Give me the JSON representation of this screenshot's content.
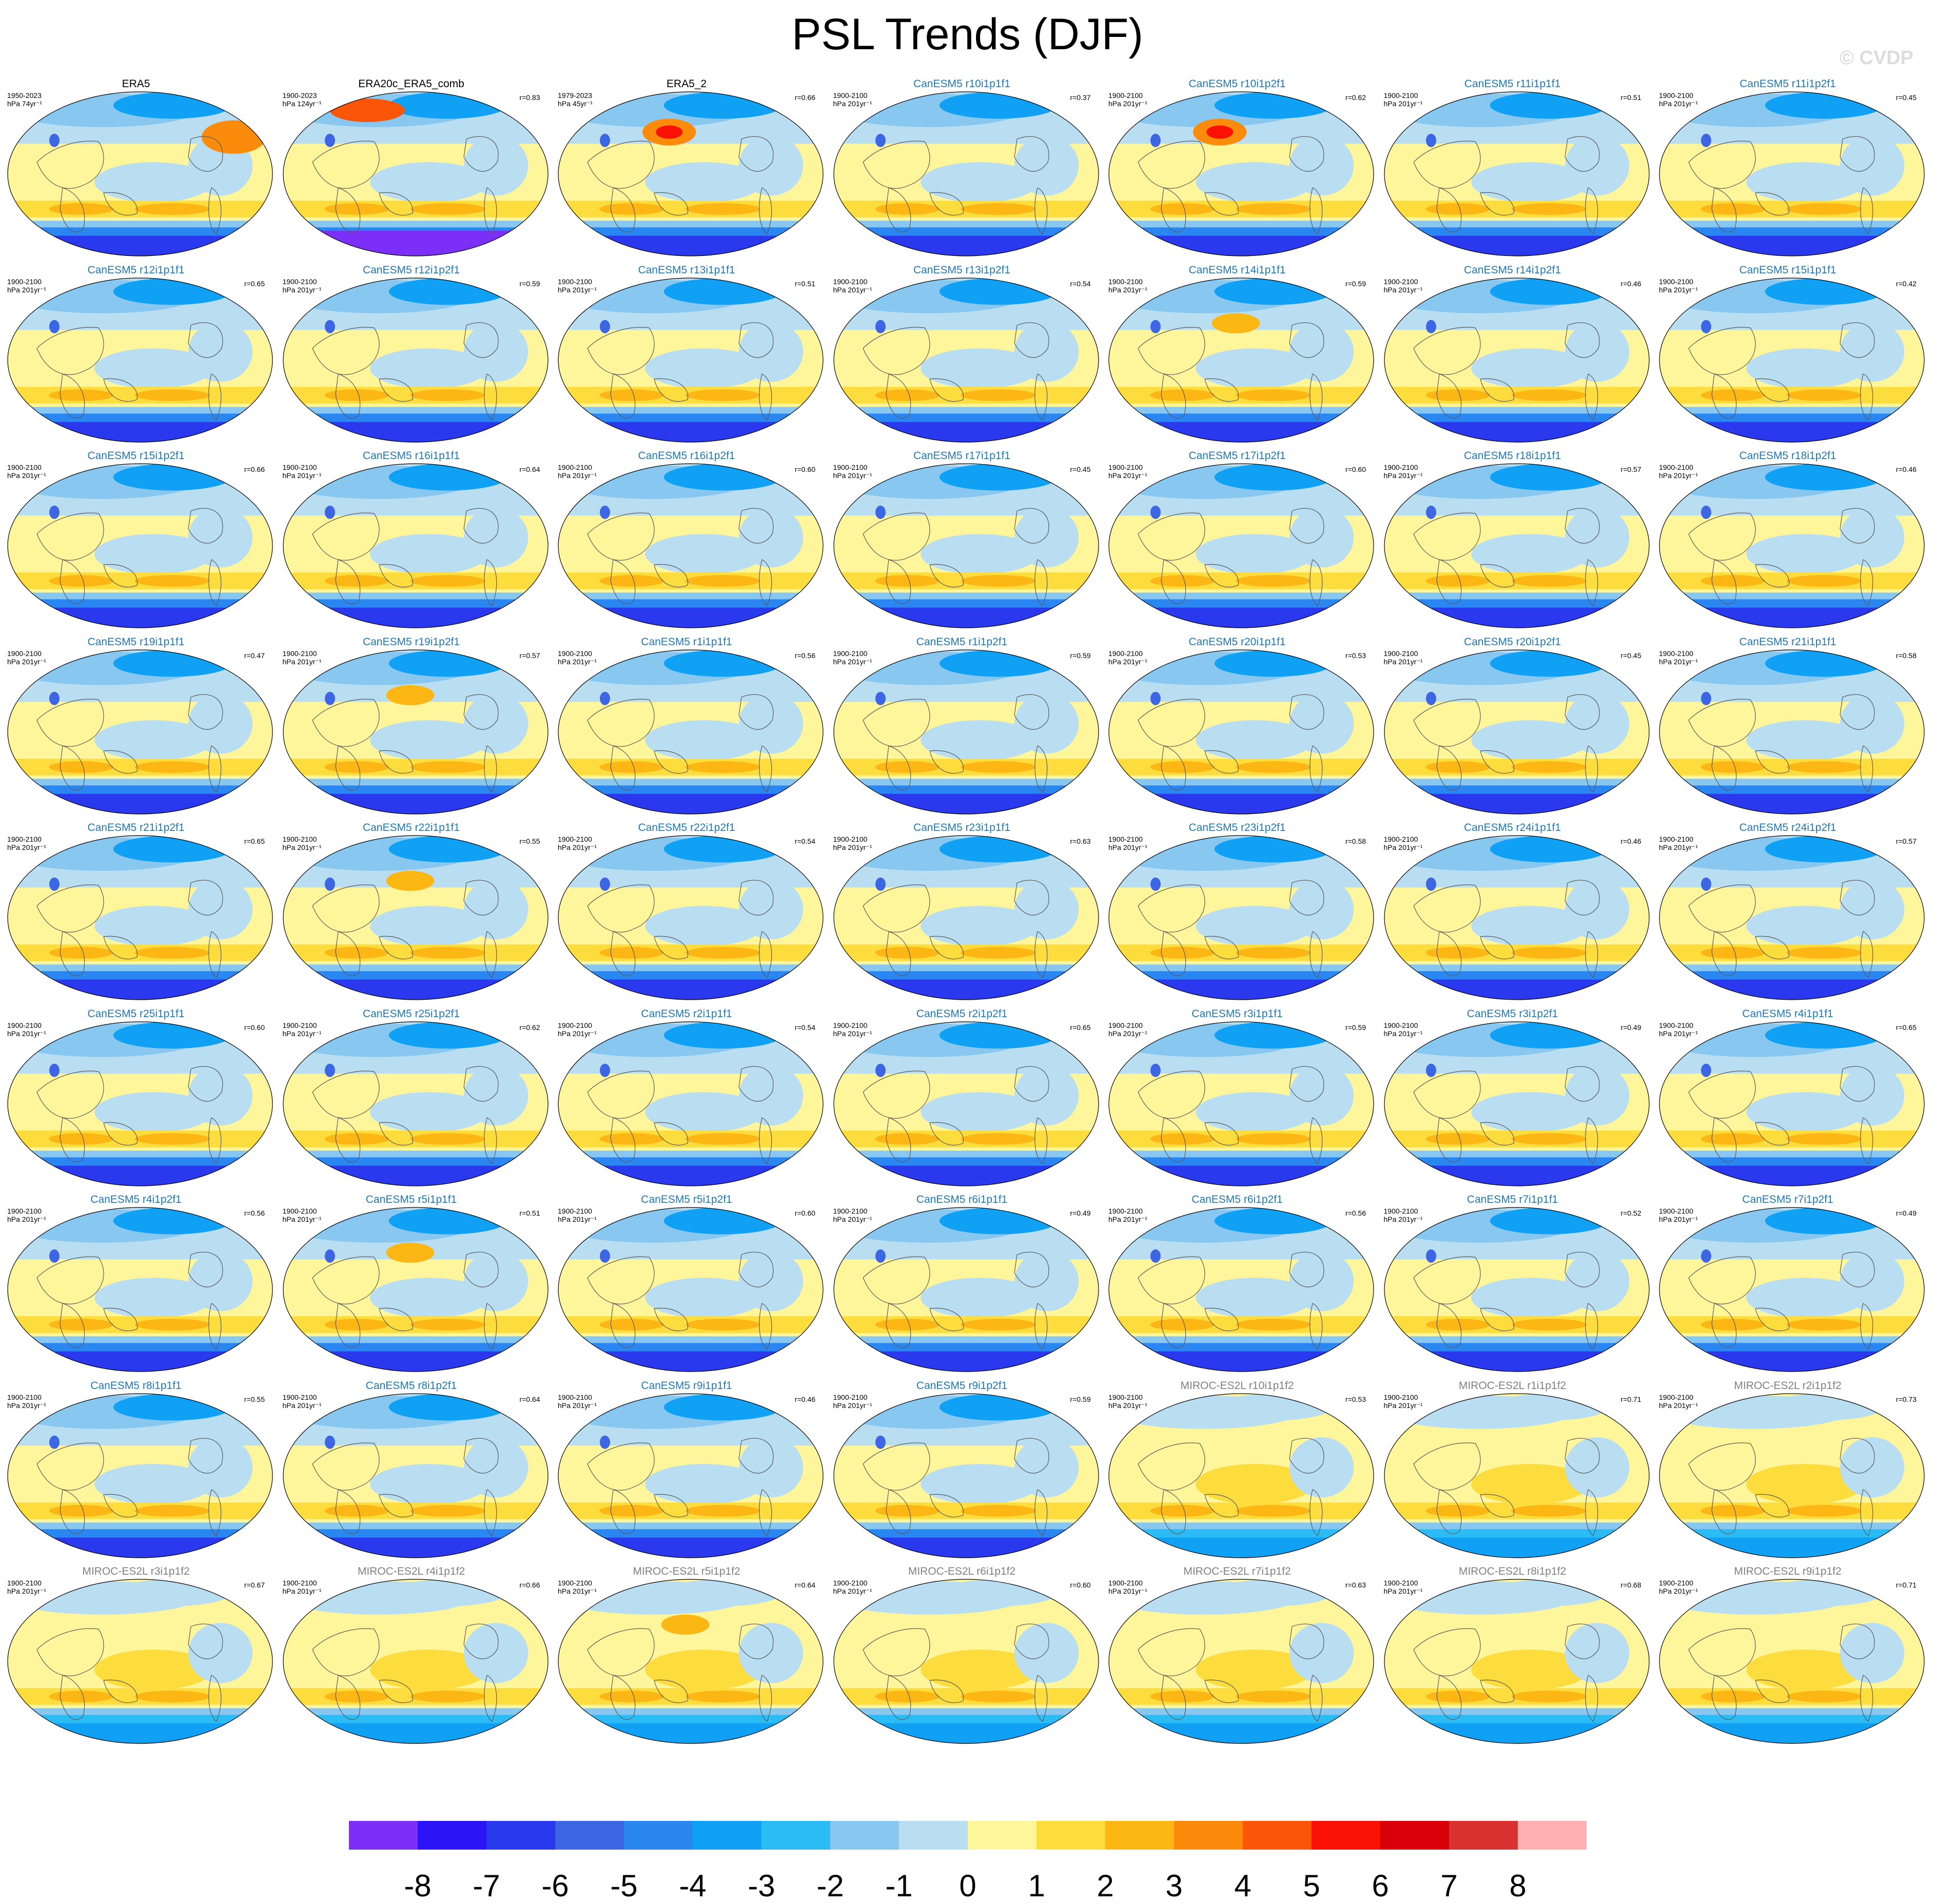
{
  "figure": {
    "title": "PSL Trends (DJF)",
    "credit": "© CVDP"
  },
  "chart_data": {
    "type": "heatmap",
    "title": "PSL Trends (DJF)",
    "projection": "Robinson (global maps)",
    "units": "hPa",
    "colorbar": {
      "levels": [
        -8,
        -7,
        -6,
        -5,
        -4,
        -3,
        -2,
        -1,
        0,
        1,
        2,
        3,
        4,
        5,
        6,
        7,
        8
      ],
      "colors": [
        "#7b2ff7",
        "#2b14f5",
        "#2b39ee",
        "#3d66e4",
        "#2a86f0",
        "#10a0f4",
        "#2bbcf5",
        "#88c8f0",
        "#b9def2",
        "#fff59a",
        "#fddc3e",
        "#fcb714",
        "#fb8c0b",
        "#fb5508",
        "#fa1106",
        "#d9000a",
        "#d93030",
        "#ffaeb2"
      ]
    },
    "panels": [
      {
        "title": "ERA5",
        "period": "1950-2023",
        "unit": "hPa 74yr⁻¹",
        "corr": "",
        "style": "obs1",
        "color": "#000000"
      },
      {
        "title": "ERA20c_ERA5_comb",
        "period": "1900-2023",
        "unit": "hPa 124yr⁻¹",
        "corr": "r=0.83",
        "style": "obs2",
        "color": "#000000"
      },
      {
        "title": "ERA5_2",
        "period": "1979-2023",
        "unit": "hPa 45yr⁻¹",
        "corr": "r=0.66",
        "style": "obs3",
        "color": "#000000"
      },
      {
        "title": "CanESM5 r10i1p1f1",
        "period": "1900-2100",
        "unit": "hPa 201yr⁻¹",
        "corr": "r=0.37",
        "style": "can",
        "color": "#1f77b4"
      },
      {
        "title": "CanESM5 r10i1p2f1",
        "period": "1900-2100",
        "unit": "hPa 201yr⁻¹",
        "corr": "r=0.62",
        "style": "canhot",
        "color": "#1f77b4"
      },
      {
        "title": "CanESM5 r11i1p1f1",
        "period": "1900-2100",
        "unit": "hPa 201yr⁻¹",
        "corr": "r=0.51",
        "style": "can",
        "color": "#1f77b4"
      },
      {
        "title": "CanESM5 r11i1p2f1",
        "period": "1900-2100",
        "unit": "hPa 201yr⁻¹",
        "corr": "r=0.45",
        "style": "can",
        "color": "#1f77b4"
      },
      {
        "title": "CanESM5 r12i1p1f1",
        "period": "1900-2100",
        "unit": "hPa 201yr⁻¹",
        "corr": "r=0.65",
        "style": "can",
        "color": "#1f77b4"
      },
      {
        "title": "CanESM5 r12i1p2f1",
        "period": "1900-2100",
        "unit": "hPa 201yr⁻¹",
        "corr": "r=0.59",
        "style": "can",
        "color": "#1f77b4"
      },
      {
        "title": "CanESM5 r13i1p1f1",
        "period": "1900-2100",
        "unit": "hPa 201yr⁻¹",
        "corr": "r=0.51",
        "style": "can",
        "color": "#1f77b4"
      },
      {
        "title": "CanESM5 r13i1p2f1",
        "period": "1900-2100",
        "unit": "hPa 201yr⁻¹",
        "corr": "r=0.54",
        "style": "can",
        "color": "#1f77b4"
      },
      {
        "title": "CanESM5 r14i1p1f1",
        "period": "1900-2100",
        "unit": "hPa 201yr⁻¹",
        "corr": "r=0.59",
        "style": "canwarm",
        "color": "#1f77b4"
      },
      {
        "title": "CanESM5 r14i1p2f1",
        "period": "1900-2100",
        "unit": "hPa 201yr⁻¹",
        "corr": "r=0.46",
        "style": "can",
        "color": "#1f77b4"
      },
      {
        "title": "CanESM5 r15i1p1f1",
        "period": "1900-2100",
        "unit": "hPa 201yr⁻¹",
        "corr": "r=0.42",
        "style": "can",
        "color": "#1f77b4"
      },
      {
        "title": "CanESM5 r15i1p2f1",
        "period": "1900-2100",
        "unit": "hPa 201yr⁻¹",
        "corr": "r=0.66",
        "style": "can",
        "color": "#1f77b4"
      },
      {
        "title": "CanESM5 r16i1p1f1",
        "period": "1900-2100",
        "unit": "hPa 201yr⁻¹",
        "corr": "r=0.64",
        "style": "can",
        "color": "#1f77b4"
      },
      {
        "title": "CanESM5 r16i1p2f1",
        "period": "1900-2100",
        "unit": "hPa 201yr⁻¹",
        "corr": "r=0.60",
        "style": "can",
        "color": "#1f77b4"
      },
      {
        "title": "CanESM5 r17i1p1f1",
        "period": "1900-2100",
        "unit": "hPa 201yr⁻¹",
        "corr": "r=0.45",
        "style": "can",
        "color": "#1f77b4"
      },
      {
        "title": "CanESM5 r17i1p2f1",
        "period": "1900-2100",
        "unit": "hPa 201yr⁻¹",
        "corr": "r=0.60",
        "style": "can",
        "color": "#1f77b4"
      },
      {
        "title": "CanESM5 r18i1p1f1",
        "period": "1900-2100",
        "unit": "hPa 201yr⁻¹",
        "corr": "r=0.57",
        "style": "can",
        "color": "#1f77b4"
      },
      {
        "title": "CanESM5 r18i1p2f1",
        "period": "1900-2100",
        "unit": "hPa 201yr⁻¹",
        "corr": "r=0.46",
        "style": "can",
        "color": "#1f77b4"
      },
      {
        "title": "CanESM5 r19i1p1f1",
        "period": "1900-2100",
        "unit": "hPa 201yr⁻¹",
        "corr": "r=0.47",
        "style": "can",
        "color": "#1f77b4"
      },
      {
        "title": "CanESM5 r19i1p2f1",
        "period": "1900-2100",
        "unit": "hPa 201yr⁻¹",
        "corr": "r=0.57",
        "style": "canwarm",
        "color": "#1f77b4"
      },
      {
        "title": "CanESM5 r1i1p1f1",
        "period": "1900-2100",
        "unit": "hPa 201yr⁻¹",
        "corr": "r=0.56",
        "style": "can",
        "color": "#1f77b4"
      },
      {
        "title": "CanESM5 r1i1p2f1",
        "period": "1900-2100",
        "unit": "hPa 201yr⁻¹",
        "corr": "r=0.59",
        "style": "can",
        "color": "#1f77b4"
      },
      {
        "title": "CanESM5 r20i1p1f1",
        "period": "1900-2100",
        "unit": "hPa 201yr⁻¹",
        "corr": "r=0.53",
        "style": "can",
        "color": "#1f77b4"
      },
      {
        "title": "CanESM5 r20i1p2f1",
        "period": "1900-2100",
        "unit": "hPa 201yr⁻¹",
        "corr": "r=0.45",
        "style": "can",
        "color": "#1f77b4"
      },
      {
        "title": "CanESM5 r21i1p1f1",
        "period": "1900-2100",
        "unit": "hPa 201yr⁻¹",
        "corr": "r=0.58",
        "style": "can",
        "color": "#1f77b4"
      },
      {
        "title": "CanESM5 r21i1p2f1",
        "period": "1900-2100",
        "unit": "hPa 201yr⁻¹",
        "corr": "r=0.65",
        "style": "can",
        "color": "#1f77b4"
      },
      {
        "title": "CanESM5 r22i1p1f1",
        "period": "1900-2100",
        "unit": "hPa 201yr⁻¹",
        "corr": "r=0.55",
        "style": "canwarm",
        "color": "#1f77b4"
      },
      {
        "title": "CanESM5 r22i1p2f1",
        "period": "1900-2100",
        "unit": "hPa 201yr⁻¹",
        "corr": "r=0.54",
        "style": "can",
        "color": "#1f77b4"
      },
      {
        "title": "CanESM5 r23i1p1f1",
        "period": "1900-2100",
        "unit": "hPa 201yr⁻¹",
        "corr": "r=0.63",
        "style": "can",
        "color": "#1f77b4"
      },
      {
        "title": "CanESM5 r23i1p2f1",
        "period": "1900-2100",
        "unit": "hPa 201yr⁻¹",
        "corr": "r=0.58",
        "style": "can",
        "color": "#1f77b4"
      },
      {
        "title": "CanESM5 r24i1p1f1",
        "period": "1900-2100",
        "unit": "hPa 201yr⁻¹",
        "corr": "r=0.46",
        "style": "can",
        "color": "#1f77b4"
      },
      {
        "title": "CanESM5 r24i1p2f1",
        "period": "1900-2100",
        "unit": "hPa 201yr⁻¹",
        "corr": "r=0.57",
        "style": "can",
        "color": "#1f77b4"
      },
      {
        "title": "CanESM5 r25i1p1f1",
        "period": "1900-2100",
        "unit": "hPa 201yr⁻¹",
        "corr": "r=0.60",
        "style": "can",
        "color": "#1f77b4"
      },
      {
        "title": "CanESM5 r25i1p2f1",
        "period": "1900-2100",
        "unit": "hPa 201yr⁻¹",
        "corr": "r=0.62",
        "style": "can",
        "color": "#1f77b4"
      },
      {
        "title": "CanESM5 r2i1p1f1",
        "period": "1900-2100",
        "unit": "hPa 201yr⁻¹",
        "corr": "r=0.54",
        "style": "can",
        "color": "#1f77b4"
      },
      {
        "title": "CanESM5 r2i1p2f1",
        "period": "1900-2100",
        "unit": "hPa 201yr⁻¹",
        "corr": "r=0.65",
        "style": "can",
        "color": "#1f77b4"
      },
      {
        "title": "CanESM5 r3i1p1f1",
        "period": "1900-2100",
        "unit": "hPa 201yr⁻¹",
        "corr": "r=0.59",
        "style": "can",
        "color": "#1f77b4"
      },
      {
        "title": "CanESM5 r3i1p2f1",
        "period": "1900-2100",
        "unit": "hPa 201yr⁻¹",
        "corr": "r=0.49",
        "style": "can",
        "color": "#1f77b4"
      },
      {
        "title": "CanESM5 r4i1p1f1",
        "period": "1900-2100",
        "unit": "hPa 201yr⁻¹",
        "corr": "r=0.65",
        "style": "can",
        "color": "#1f77b4"
      },
      {
        "title": "CanESM5 r4i1p2f1",
        "period": "1900-2100",
        "unit": "hPa 201yr⁻¹",
        "corr": "r=0.56",
        "style": "can",
        "color": "#1f77b4"
      },
      {
        "title": "CanESM5 r5i1p1f1",
        "period": "1900-2100",
        "unit": "hPa 201yr⁻¹",
        "corr": "r=0.51",
        "style": "canwarm",
        "color": "#1f77b4"
      },
      {
        "title": "CanESM5 r5i1p2f1",
        "period": "1900-2100",
        "unit": "hPa 201yr⁻¹",
        "corr": "r=0.60",
        "style": "can",
        "color": "#1f77b4"
      },
      {
        "title": "CanESM5 r6i1p1f1",
        "period": "1900-2100",
        "unit": "hPa 201yr⁻¹",
        "corr": "r=0.49",
        "style": "can",
        "color": "#1f77b4"
      },
      {
        "title": "CanESM5 r6i1p2f1",
        "period": "1900-2100",
        "unit": "hPa 201yr⁻¹",
        "corr": "r=0.56",
        "style": "can",
        "color": "#1f77b4"
      },
      {
        "title": "CanESM5 r7i1p1f1",
        "period": "1900-2100",
        "unit": "hPa 201yr⁻¹",
        "corr": "r=0.52",
        "style": "can",
        "color": "#1f77b4"
      },
      {
        "title": "CanESM5 r7i1p2f1",
        "period": "1900-2100",
        "unit": "hPa 201yr⁻¹",
        "corr": "r=0.49",
        "style": "can",
        "color": "#1f77b4"
      },
      {
        "title": "CanESM5 r8i1p1f1",
        "period": "1900-2100",
        "unit": "hPa 201yr⁻¹",
        "corr": "r=0.55",
        "style": "can",
        "color": "#1f77b4"
      },
      {
        "title": "CanESM5 r8i1p2f1",
        "period": "1900-2100",
        "unit": "hPa 201yr⁻¹",
        "corr": "r=0.64",
        "style": "can",
        "color": "#1f77b4"
      },
      {
        "title": "CanESM5 r9i1p1f1",
        "period": "1900-2100",
        "unit": "hPa 201yr⁻¹",
        "corr": "r=0.46",
        "style": "can",
        "color": "#1f77b4"
      },
      {
        "title": "CanESM5 r9i1p2f1",
        "period": "1900-2100",
        "unit": "hPa 201yr⁻¹",
        "corr": "r=0.59",
        "style": "can",
        "color": "#1f77b4"
      },
      {
        "title": "MIROC-ES2L r10i1p1f2",
        "period": "1900-2100",
        "unit": "hPa 201yr⁻¹",
        "corr": "r=0.53",
        "style": "miroc",
        "color": "#808080"
      },
      {
        "title": "MIROC-ES2L r1i1p1f2",
        "period": "1900-2100",
        "unit": "hPa 201yr⁻¹",
        "corr": "r=0.71",
        "style": "miroc",
        "color": "#808080"
      },
      {
        "title": "MIROC-ES2L r2i1p1f2",
        "period": "1900-2100",
        "unit": "hPa 201yr⁻¹",
        "corr": "r=0.73",
        "style": "miroc",
        "color": "#808080"
      },
      {
        "title": "MIROC-ES2L r3i1p1f2",
        "period": "1900-2100",
        "unit": "hPa 201yr⁻¹",
        "corr": "r=0.67",
        "style": "miroc",
        "color": "#808080"
      },
      {
        "title": "MIROC-ES2L r4i1p1f2",
        "period": "1900-2100",
        "unit": "hPa 201yr⁻¹",
        "corr": "r=0.66",
        "style": "miroc",
        "color": "#808080"
      },
      {
        "title": "MIROC-ES2L r5i1p1f2",
        "period": "1900-2100",
        "unit": "hPa 201yr⁻¹",
        "corr": "r=0.64",
        "style": "mirocwarm",
        "color": "#808080"
      },
      {
        "title": "MIROC-ES2L r6i1p1f2",
        "period": "1900-2100",
        "unit": "hPa 201yr⁻¹",
        "corr": "r=0.60",
        "style": "miroc",
        "color": "#808080"
      },
      {
        "title": "MIROC-ES2L r7i1p1f2",
        "period": "1900-2100",
        "unit": "hPa 201yr⁻¹",
        "corr": "r=0.63",
        "style": "miroc",
        "color": "#808080"
      },
      {
        "title": "MIROC-ES2L r8i1p1f2",
        "period": "1900-2100",
        "unit": "hPa 201yr⁻¹",
        "corr": "r=0.68",
        "style": "miroc",
        "color": "#808080"
      },
      {
        "title": "MIROC-ES2L r9i1p1f2",
        "period": "1900-2100",
        "unit": "hPa 201yr⁻¹",
        "corr": "r=0.71",
        "style": "miroc",
        "color": "#808080"
      }
    ]
  }
}
